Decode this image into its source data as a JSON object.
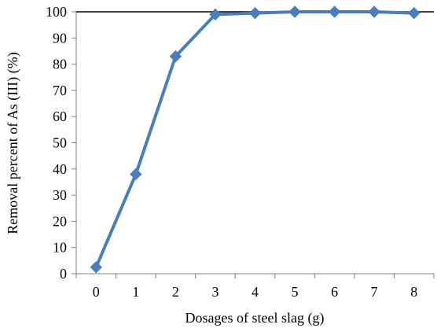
{
  "chart_data": {
    "type": "line",
    "title": "",
    "xlabel": "Dosages of steel slag (g)",
    "ylabel": "Removal percent of As (III) (%)",
    "x": [
      0,
      1,
      2,
      3,
      4,
      5,
      6,
      7,
      8
    ],
    "series": [
      {
        "values": [
          2.5,
          38,
          83,
          99,
          99.5,
          100,
          100,
          100,
          99.5
        ],
        "color": "#4a7ebb",
        "marker": "diamond"
      }
    ],
    "xticks": [
      "0",
      "1",
      "2",
      "3",
      "4",
      "5",
      "6",
      "7",
      "8"
    ],
    "yticks": [
      "0",
      "10",
      "20",
      "30",
      "40",
      "50",
      "60",
      "70",
      "80",
      "90",
      "100"
    ],
    "xlim": [
      -0.5,
      8.5
    ],
    "ylim": [
      0,
      100
    ],
    "grid": false,
    "legend": "none"
  }
}
